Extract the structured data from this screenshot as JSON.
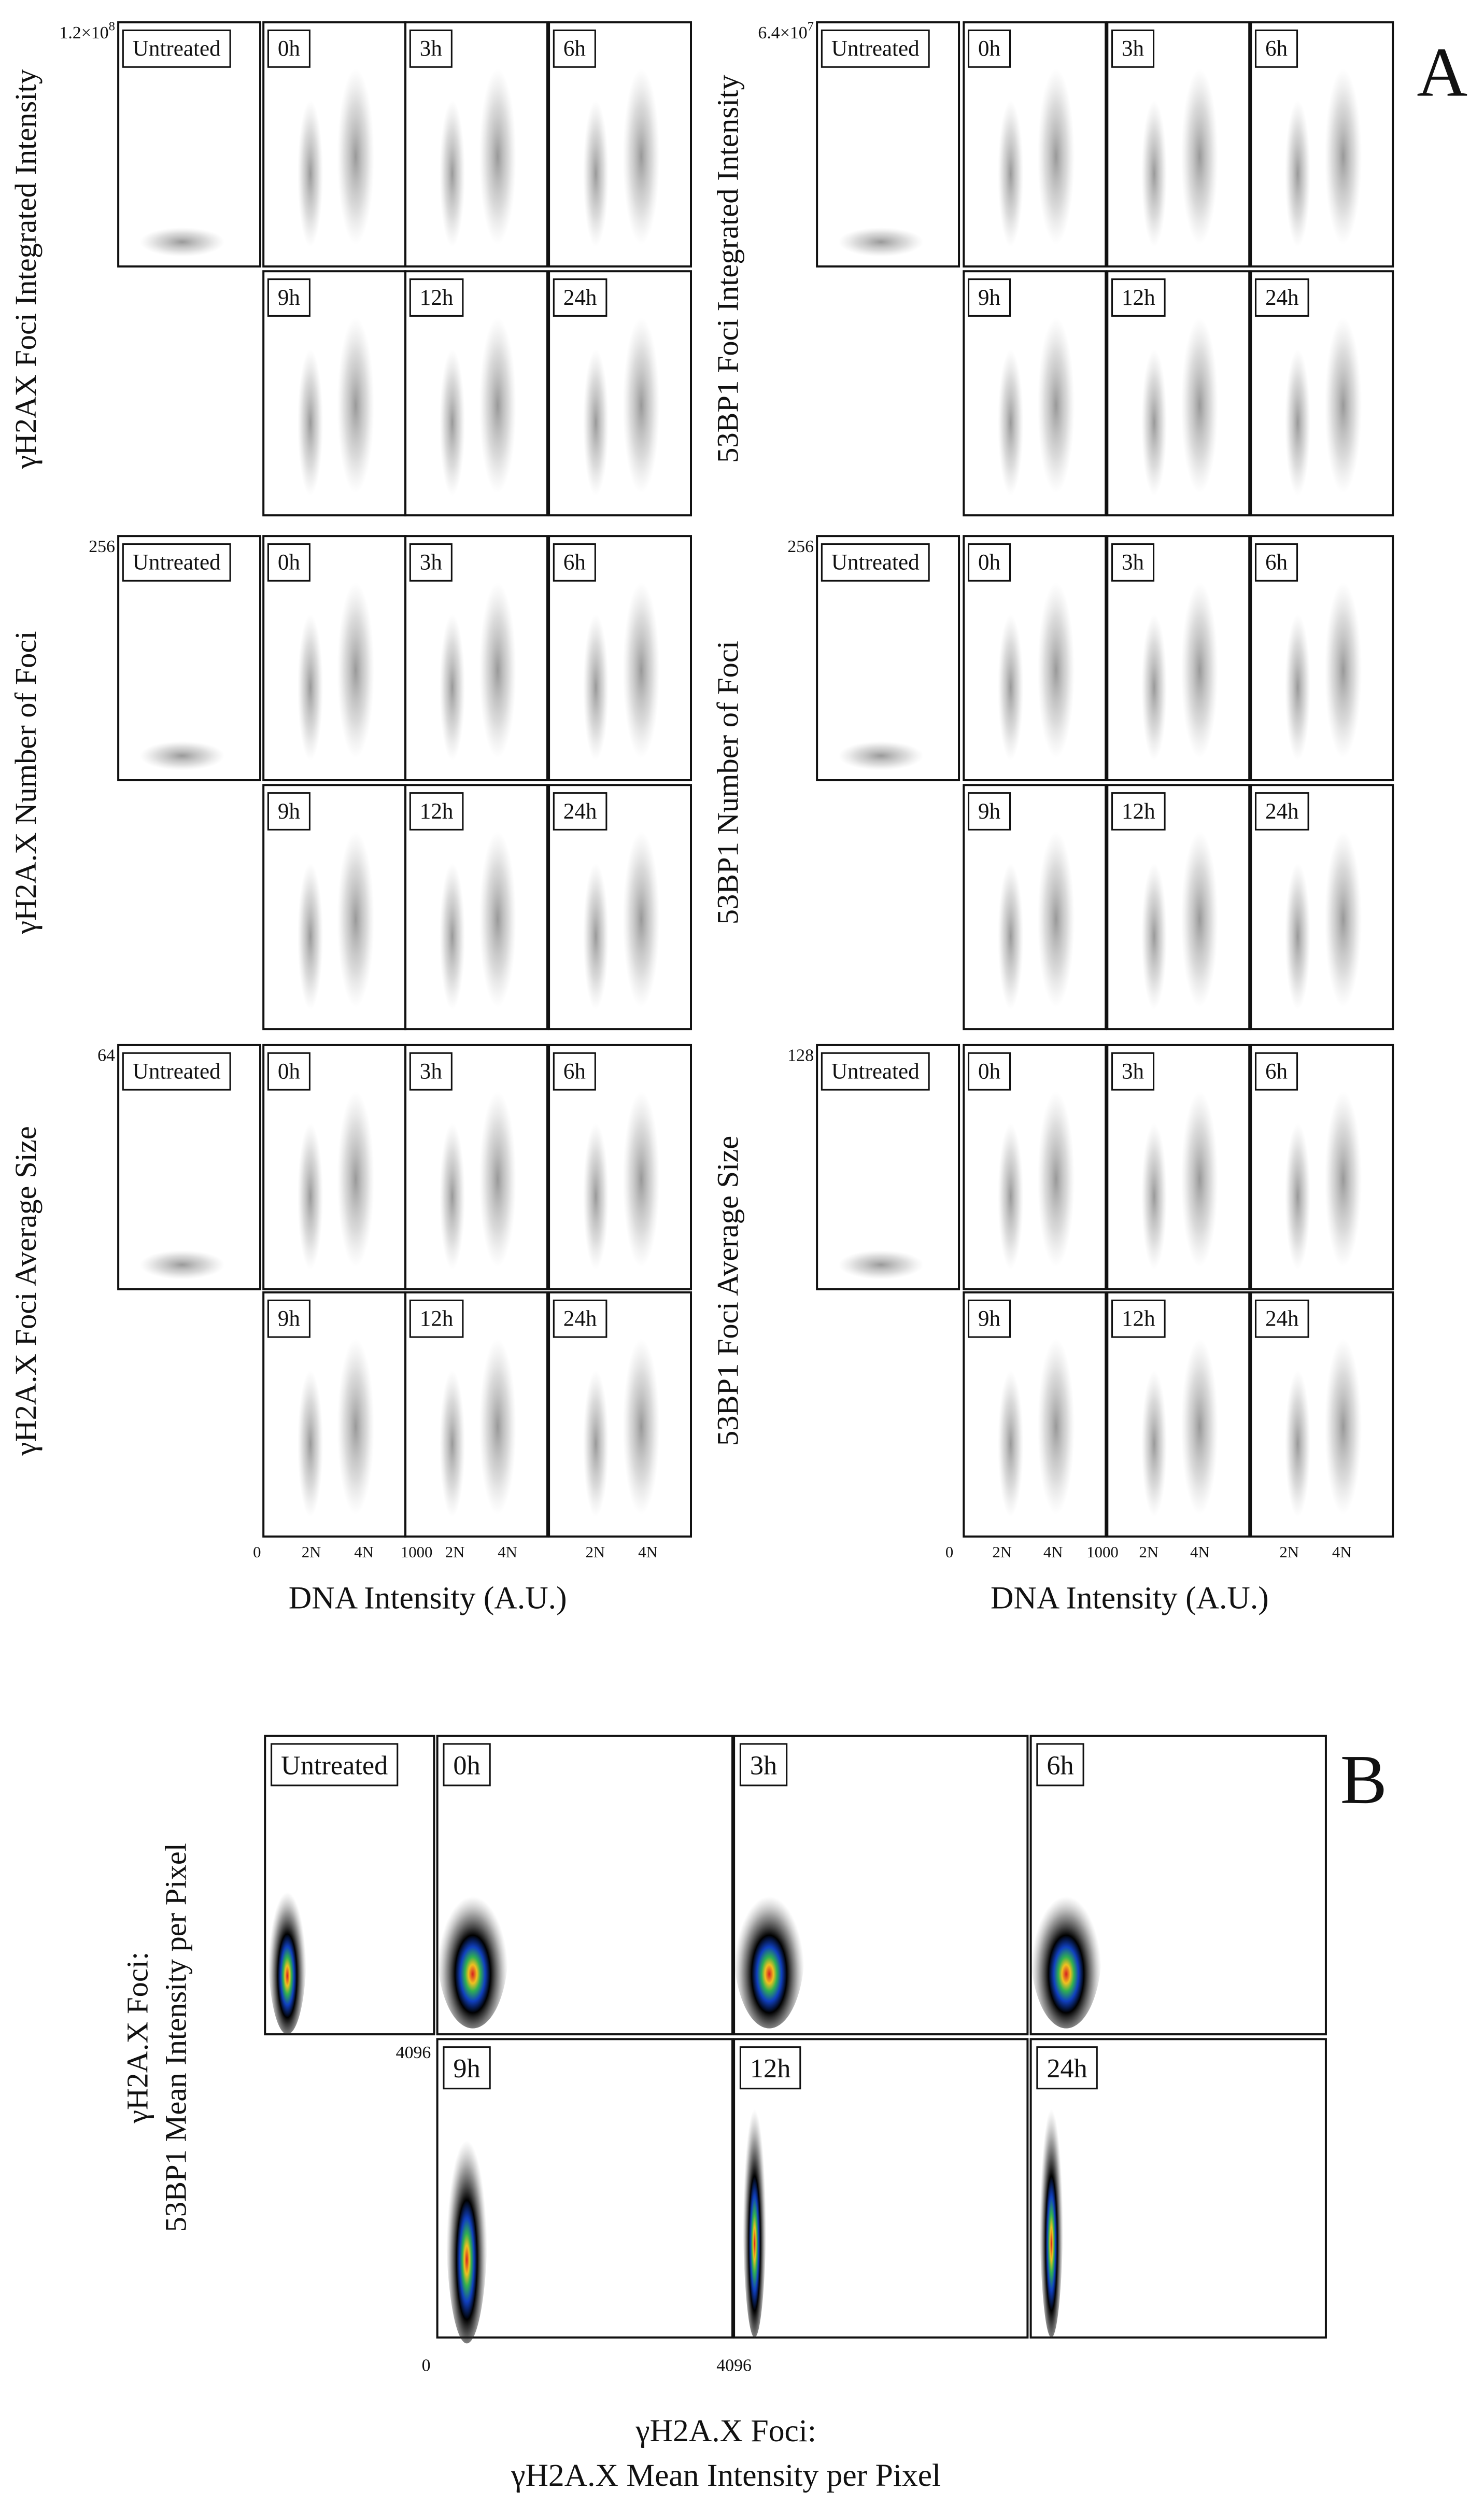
{
  "panel_a": {
    "label": "A",
    "groups": [
      {
        "y_label": "γH2AX Foci Integrated Intensity",
        "y_max": {
          "base": "1.2×10",
          "exp": "8"
        },
        "panels": [
          "Untreated",
          "0h",
          "3h",
          "6h",
          "9h",
          "12h",
          "24h"
        ]
      },
      {
        "y_label": "γH2A.X Number of Foci",
        "y_max": "256",
        "panels": [
          "Untreated",
          "0h",
          "3h",
          "6h",
          "9h",
          "12h",
          "24h"
        ]
      },
      {
        "y_label": "γH2A.X Foci Average Size",
        "y_max": "64",
        "panels": [
          "Untreated",
          "0h",
          "3h",
          "6h",
          "9h",
          "12h",
          "24h"
        ]
      },
      {
        "y_label": "53BP1 Foci Integrated Intensity",
        "y_max": {
          "base": "6.4×10",
          "exp": "7"
        },
        "panels": [
          "Untreated",
          "0h",
          "3h",
          "6h",
          "9h",
          "12h",
          "24h"
        ]
      },
      {
        "y_label": "53BP1 Number of Foci",
        "y_max": "256",
        "panels": [
          "Untreated",
          "0h",
          "3h",
          "6h",
          "9h",
          "12h",
          "24h"
        ]
      },
      {
        "y_label": "53BP1  Foci Average Size",
        "y_max": "128",
        "panels": [
          "Untreated",
          "0h",
          "3h",
          "6h",
          "9h",
          "12h",
          "24h"
        ]
      }
    ],
    "x_ticks_left": [
      "0",
      "2N",
      "4N",
      "1000",
      "2N",
      "4N",
      "2N",
      "4N"
    ],
    "x_ticks_right": [
      "0",
      "2N",
      "4N",
      "1000",
      "2N",
      "4N",
      "2N",
      "4N"
    ],
    "x_label_left": "DNA Intensity (A.U.)",
    "x_label_right": "DNA Intensity (A.U.)"
  },
  "panel_b": {
    "label": "B",
    "panels": [
      "Untreated",
      "0h",
      "3h",
      "6h",
      "9h",
      "12h",
      "24h"
    ],
    "y_label": [
      "γH2A.X Foci:",
      "53BP1 Mean Intensity per Pixel"
    ],
    "y_tick": "4096",
    "x_ticks": [
      "0",
      "4096"
    ],
    "x_label": [
      "γH2A.X Foci:",
      "γH2A.X Mean Intensity per Pixel"
    ]
  }
}
